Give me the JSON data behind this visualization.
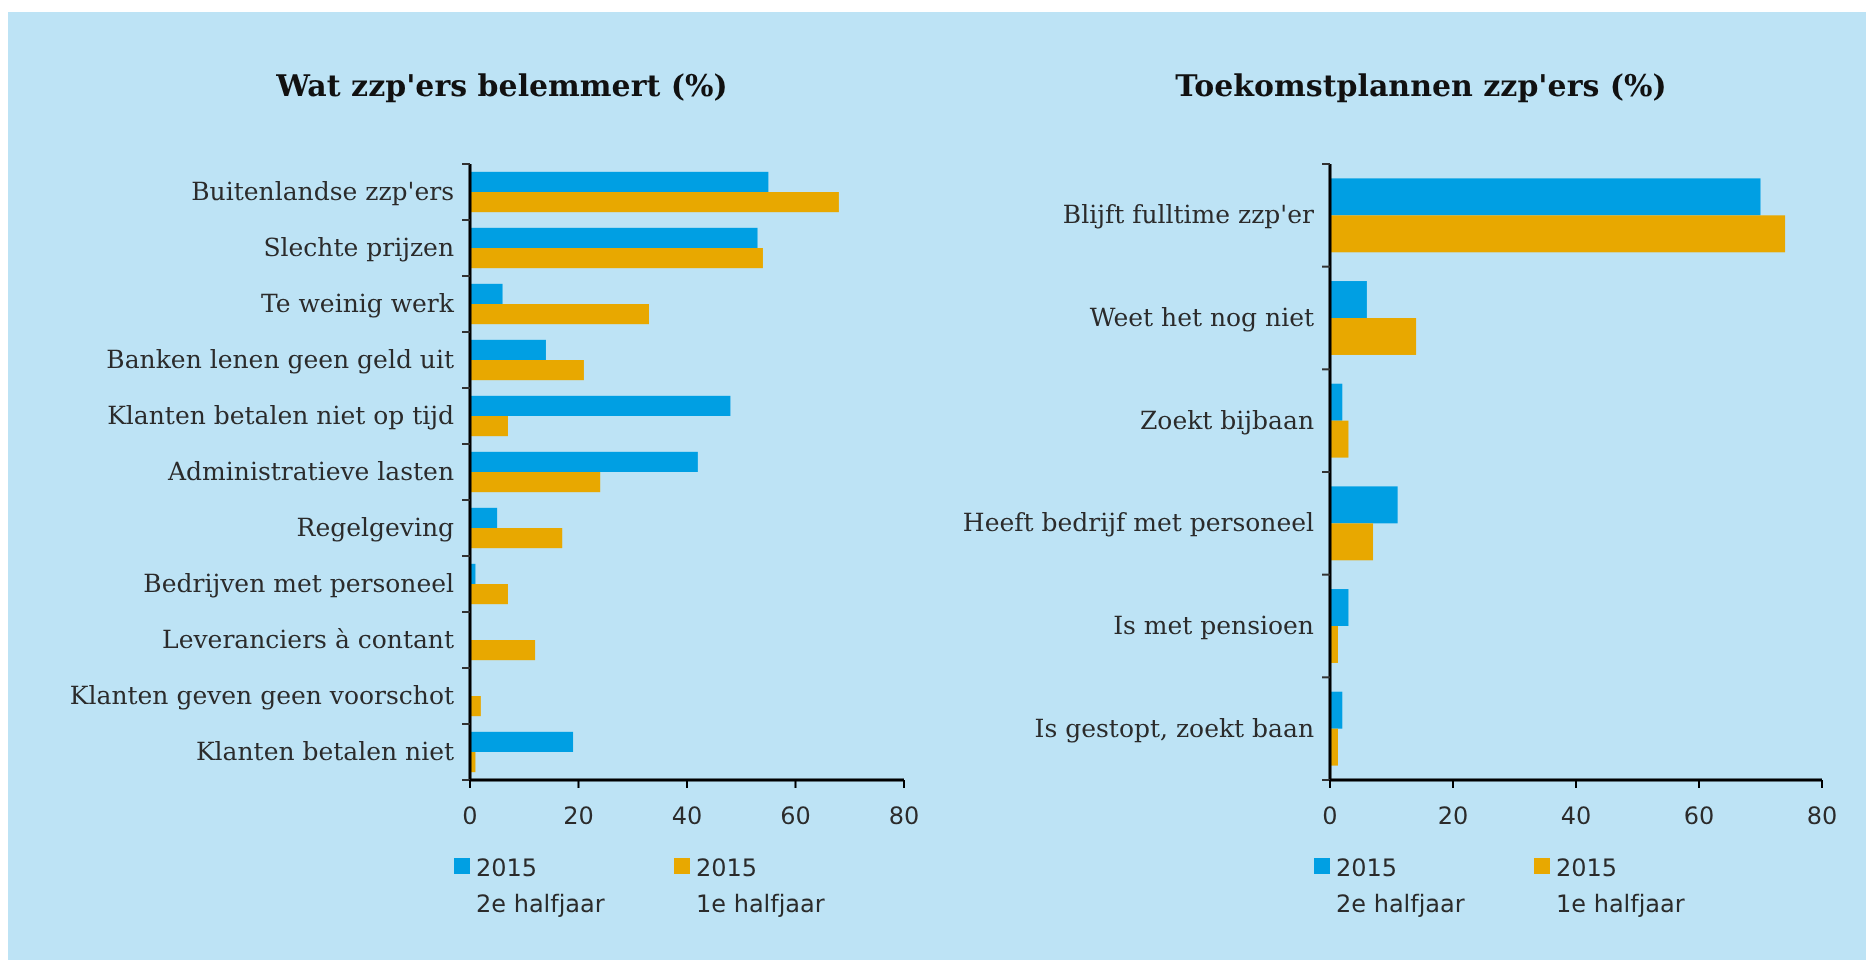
{
  "chart_data": [
    {
      "type": "bar",
      "orientation": "horizontal",
      "title": "Wat zzp'ers belemmert (%)",
      "categories": [
        "Buitenlandse zzp'ers",
        "Slechte prijzen",
        "Te weinig werk",
        "Banken lenen geen geld uit",
        "Klanten betalen niet op tijd",
        "Administratieve lasten",
        "Regelgeving",
        "Bedrijven met personeel",
        "Leveranciers  à contant",
        "Klanten geven geen voorschot",
        "Klanten betalen niet"
      ],
      "series": [
        {
          "name": "2015\n2e halfjaar",
          "color": "#009fe3",
          "values": [
            55,
            53,
            6,
            14,
            48,
            42,
            5,
            1,
            0,
            0,
            19
          ]
        },
        {
          "name": "2015\n1e halfjaar",
          "color": "#e8a800",
          "values": [
            68,
            54,
            33,
            21,
            7,
            24,
            17,
            7,
            12,
            2,
            1
          ]
        }
      ],
      "xlim": [
        0,
        80
      ],
      "xticks": [
        0,
        20,
        40,
        60,
        80
      ],
      "grid": false,
      "legend": "bottom"
    },
    {
      "type": "bar",
      "orientation": "horizontal",
      "title": "Toekomstplannen zzp'ers (%)",
      "categories": [
        "Blijft fulltime zzp'er",
        "Weet het nog niet",
        "Zoekt bijbaan",
        "Heeft bedrijf met personeel",
        "Is met pensioen",
        "Is gestopt, zoekt baan"
      ],
      "series": [
        {
          "name": "2015\n2e halfjaar",
          "color": "#009fe3",
          "values": [
            70,
            6,
            2,
            11,
            3,
            2
          ]
        },
        {
          "name": "2015\n1e halfjaar",
          "color": "#e8a800",
          "values": [
            74,
            14,
            3,
            7,
            1.3,
            1.3
          ]
        }
      ],
      "xlim": [
        0,
        80
      ],
      "xticks": [
        0,
        20,
        40,
        60,
        80
      ],
      "grid": false,
      "legend": "bottom"
    }
  ]
}
